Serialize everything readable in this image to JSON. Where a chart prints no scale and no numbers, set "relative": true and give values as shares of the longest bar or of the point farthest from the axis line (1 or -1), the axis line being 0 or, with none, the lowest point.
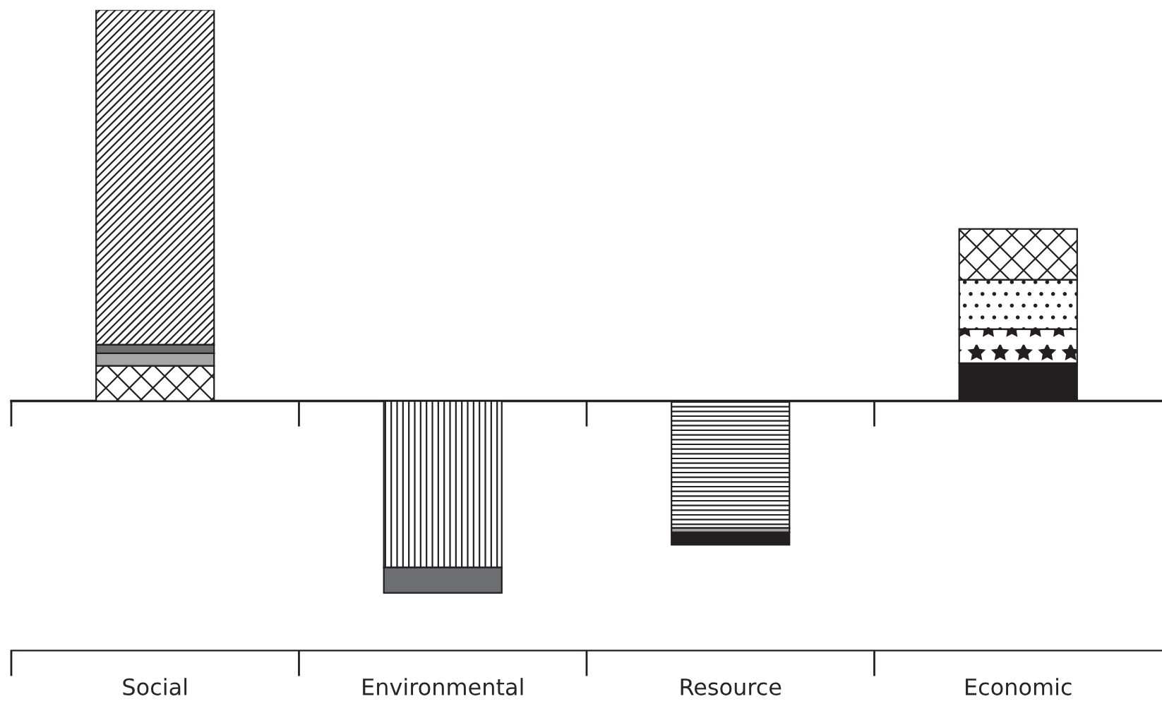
{
  "chart_data": {
    "type": "bar",
    "stacked": true,
    "relative": true,
    "categories": [
      "Social",
      "Environmental",
      "Resource",
      "Economic"
    ],
    "series": [
      {
        "color": "#231f20",
        "values": [
          0.09,
          null,
          null,
          null
        ]
      },
      {
        "color": "#a6a6a6",
        "values": [
          0.032,
          null,
          null,
          null
        ]
      },
      {
        "color": "#6d6e71",
        "values": [
          0.022,
          null,
          null,
          null
        ]
      },
      {
        "color": "#231f20",
        "values": [
          0.856,
          null,
          null,
          null
        ]
      },
      {
        "color": "#231f20",
        "values": [
          null,
          -0.426,
          null,
          null
        ]
      },
      {
        "color": "#6d6e71",
        "values": [
          null,
          -0.065,
          null,
          null
        ]
      },
      {
        "color": "#231f20",
        "values": [
          null,
          null,
          -0.325,
          null
        ]
      },
      {
        "color": "#a6a6a6",
        "values": [
          null,
          null,
          -0.011,
          null
        ]
      },
      {
        "color": "#231f20",
        "values": [
          null,
          null,
          -0.032,
          null
        ]
      },
      {
        "color": "#231f20",
        "values": [
          null,
          null,
          null,
          0.097
        ]
      },
      {
        "color": "#231f20",
        "values": [
          null,
          null,
          null,
          0.087
        ]
      },
      {
        "color": "#231f20",
        "values": [
          null,
          null,
          null,
          0.126
        ]
      },
      {
        "color": "#231f20",
        "values": [
          null,
          null,
          null,
          0.13
        ]
      }
    ],
    "grid": false,
    "legend": false
  }
}
